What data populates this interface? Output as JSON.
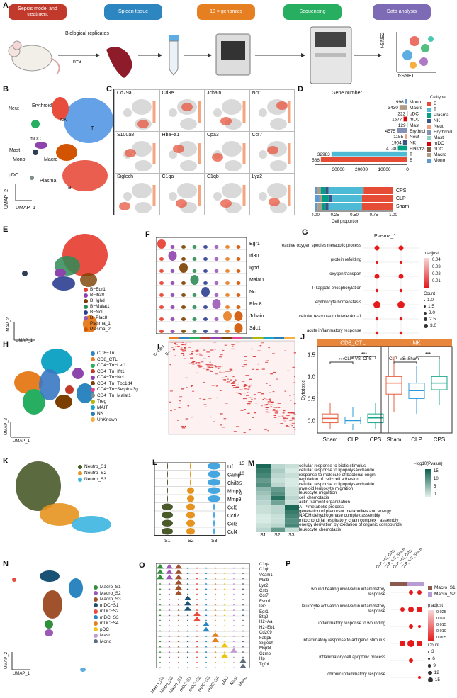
{
  "panel_labels": [
    "A",
    "B",
    "C",
    "D",
    "E",
    "F",
    "G",
    "H",
    "I",
    "J",
    "K",
    "L",
    "M",
    "N",
    "O",
    "P"
  ],
  "panelA": {
    "steps": [
      {
        "label": "Sepsis model and treatment",
        "color": "#c0392b"
      },
      {
        "label": "Spleen tissue",
        "color": "#2e86c1"
      },
      {
        "label": "10 × genomics",
        "color": "#e67e22"
      },
      {
        "label": "Sequencing",
        "color": "#27ae60"
      },
      {
        "label": "Data analysis",
        "color": "#7d6bb5"
      }
    ],
    "bio_rep": "Biological replicates",
    "n": "n=3",
    "tsne_x": "t-SNE1",
    "tsne_y": "t-SNE2"
  },
  "panelB": {
    "clusters": [
      "Neut",
      "Erythroid",
      "NK",
      "T",
      "Mast",
      "mDC",
      "Mono",
      "Macro",
      "pDC",
      "Plasma",
      "B"
    ],
    "xlabel": "UMAP_1",
    "ylabel": "UMAP_2"
  },
  "panelC": {
    "genes": [
      "Cd79a",
      "Cd3e",
      "Jchain",
      "Ncr1",
      "S100a8",
      "Hba−a1",
      "Cpa3",
      "Ccr7",
      "Siglech",
      "C1qa",
      "C1qb",
      "Lyz2"
    ]
  },
  "panelD": {
    "title": "Gene number",
    "chart_data": {
      "type": "bar",
      "categories": [
        "Mono",
        "Macro",
        "pDC",
        "mDC",
        "Mast",
        "Erythroid",
        "Neut",
        "NK",
        "Plasma",
        "T",
        "B"
      ],
      "values": [
        996,
        3430,
        222,
        1677,
        129,
        4575,
        1155,
        1904,
        4138,
        32983,
        37586
      ],
      "xticks": [
        "30000",
        "20000",
        "10000",
        "0"
      ],
      "prop_conditions": [
        "CPS",
        "CLP",
        "Sham"
      ],
      "prop_xticks": [
        "0.00",
        "0.25",
        "0.50",
        "0.75",
        "1.00"
      ],
      "prop_xlabel": "Cell proportion"
    },
    "legend_title": "Celltype",
    "legend": [
      {
        "name": "B",
        "color": "#e64b35"
      },
      {
        "name": "T",
        "color": "#4dbbd5"
      },
      {
        "name": "Plasma",
        "color": "#00a087"
      },
      {
        "name": "NK",
        "color": "#3c5488"
      },
      {
        "name": "Neut",
        "color": "#f39b7f"
      },
      {
        "name": "Erythroid",
        "color": "#8491b4"
      },
      {
        "name": "Mast",
        "color": "#91d1c2"
      },
      {
        "name": "mDC",
        "color": "#dc0000"
      },
      {
        "name": "pDC",
        "color": "#7e6148"
      },
      {
        "name": "Macro",
        "color": "#b09c85"
      },
      {
        "name": "Mono",
        "color": "#5b9bd5"
      }
    ]
  },
  "panelE": {
    "legend": [
      {
        "name": "B−Edr1",
        "color": "#e63c2e"
      },
      {
        "name": "B−Ifi30",
        "color": "#8e44ad"
      },
      {
        "name": "B−Ighd",
        "color": "#7b3f00"
      },
      {
        "name": "B−Malat1",
        "color": "#2e8b57"
      },
      {
        "name": "B−Ncl",
        "color": "#2c3e90"
      },
      {
        "name": "B−Plac8",
        "color": "#9b59b6"
      },
      {
        "name": "Plasma_1",
        "color": "#e67e22"
      },
      {
        "name": "Plasma_2",
        "color": "#d35400"
      }
    ],
    "xlabel": "UMAP_1",
    "ylabel": "UMAP_2"
  },
  "panelF": {
    "genes": [
      "Egr1",
      "Ifi30",
      "Ighd",
      "Malat1",
      "Ncl",
      "Plac8",
      "Jchain",
      "Sdc1"
    ],
    "groups": [
      "B−Edr1",
      "B−Ifi30",
      "B−Ighd",
      "B−Malat1",
      "B−Ncl",
      "B−Plac8",
      "Plasma_1",
      "Plasma_2"
    ]
  },
  "panelG": {
    "title": "Plasma_1",
    "terms": [
      "reactive oxygen species metabolic process",
      "protein refolding",
      "oxygen transport",
      "I−kappaB phosphorylation",
      "erythrocyte homeostasis",
      "cellular response to interleukin−1",
      "acute inflammatory response"
    ],
    "x": [
      "CLP_VS_CPS",
      "CLP_VS_Sham"
    ],
    "padj_title": "p.adjust",
    "padj_ticks": [
      "0.04",
      "0.03",
      "0.02",
      "0.01"
    ],
    "count_title": "Count",
    "count_ticks": [
      "1.0",
      "1.5",
      "2.0",
      "2.5",
      "3.0"
    ]
  },
  "panelH": {
    "legend": [
      {
        "name": "CD8−Tn",
        "color": "#2e86c1"
      },
      {
        "name": "CD8_CTL",
        "color": "#e67e22"
      },
      {
        "name": "CD4−Tn−Lef1",
        "color": "#27ae60"
      },
      {
        "name": "CD4−Tn−Ifit1",
        "color": "#c0392b"
      },
      {
        "name": "CD4−Tn−Ncl",
        "color": "#8e44ad"
      },
      {
        "name": "CD4−Tn−Tbc1d4",
        "color": "#7b3f00"
      },
      {
        "name": "CD4−Tn−Serpina3g",
        "color": "#e84393"
      },
      {
        "name": "CD4−Tn−Malat1",
        "color": "#7f8c8d"
      },
      {
        "name": "Treg",
        "color": "#b5b800"
      },
      {
        "name": "MAIT",
        "color": "#16a5c4"
      },
      {
        "name": "NK",
        "color": "#2980b9"
      },
      {
        "name": "UnKnown",
        "color": "#f5b041"
      }
    ],
    "xlabel": "UMAP_1",
    "ylabel": "UMAP_2"
  },
  "panelJ": {
    "facets": [
      "CD8_CTL",
      "NK"
    ],
    "ylabel": "Cytotoxic",
    "yticks": [
      "1.5",
      "1.0",
      "0.5",
      "0.0"
    ],
    "x": [
      "Sham",
      "CLP",
      "CPS"
    ],
    "sig": "***"
  },
  "panelK": {
    "legend": [
      {
        "name": "Neutro_S1",
        "color": "#4a5a2a"
      },
      {
        "name": "Neutro_S2",
        "color": "#e6941f"
      },
      {
        "name": "Neutro_S3",
        "color": "#3bb5e0"
      }
    ]
  },
  "panelL": {
    "genes": [
      "Ltf",
      "Camp",
      "Chil3",
      "Mmp8",
      "Mmp9",
      "Ccl6",
      "Ccrl2",
      "Ccl3",
      "Ccl4"
    ],
    "groups": [
      "S1",
      "S2",
      "S3"
    ],
    "scale": [
      "15",
      "10",
      "5",
      "0"
    ]
  },
  "panelM": {
    "terms": [
      "cellular response to biotic stimulus",
      "cellular response to lipopolysaccharide",
      "response to molecule of bacterial origin",
      "regulation of cell−cell adhesion",
      "cellular response to lipopolysaccharide",
      "myeloid leukocyte migration",
      "leukocyte migration",
      "cell chemotaxis",
      "actin filament organization",
      "ATP metabolic process",
      "generation of precursor metabolites and energy",
      "NADH dehydrogenase complex assembly",
      "mitochondrial respiratory chain complex I assembly",
      "energy derivation by oxidation of organic compounds",
      "leukocyte chemotaxis"
    ],
    "groups": [
      "S1",
      "S2",
      "S3"
    ],
    "scale_title": "−log10(Pvalue)",
    "scale_ticks": [
      "15",
      "10",
      "5",
      "0"
    ]
  },
  "panelN": {
    "legend": [
      {
        "name": "Macro_S1",
        "color": "#2f8f3a"
      },
      {
        "name": "Macro_S2",
        "color": "#9b59b6"
      },
      {
        "name": "Macro_S3",
        "color": "#a0522d"
      },
      {
        "name": "mDC−S1",
        "color": "#1a5276"
      },
      {
        "name": "mDC−S2",
        "color": "#e74c3c"
      },
      {
        "name": "mDC−S3",
        "color": "#2e86c1"
      },
      {
        "name": "mDC−S4",
        "color": "#e67e22"
      },
      {
        "name": "pDC",
        "color": "#f1c40f"
      },
      {
        "name": "Mast",
        "color": "#c39bd3"
      },
      {
        "name": "Mono",
        "color": "#5d6d7e"
      }
    ],
    "xlabel": "UMAP_1",
    "ylabel": "UMAP_2"
  },
  "panelO": {
    "genes": [
      "C1qa",
      "C1qb",
      "Vcam1",
      "Mafb",
      "Lyz2",
      "Cstb",
      "Ccr7",
      "Fscn1",
      "Ier3",
      "Egr1",
      "Btg2",
      "H2−Aa",
      "H2−Eb1",
      "Cd209",
      "Fabp5",
      "Siglech",
      "Mcpt8",
      "Gzmb",
      "Hp",
      "Tgfbi"
    ],
    "groups": [
      "Macro_S1",
      "Macro_S2",
      "Macro_S3",
      "mDC−S1",
      "mDC−S2",
      "mDC−S3",
      "mDC−S4",
      "pDC",
      "Mast",
      "Mono"
    ]
  },
  "panelP": {
    "x": [
      "CLP_VS_CPS",
      "CLP_VS_Sham",
      "CLP_VS_CPS",
      "CLP_VS_Sham"
    ],
    "legend": [
      {
        "name": "Macro_S1",
        "color": "#8b5a4a"
      },
      {
        "name": "Macro_S2",
        "color": "#b79bd3"
      }
    ],
    "terms": [
      "wound healing involved in inflammatory response",
      "leukocyte activation involved in inflammatory response",
      "inflammatory response to wounding",
      "inflammatory response to antigenic stimulus",
      "inflammatory cell apoptotic process",
      "chronic inflammatory response"
    ],
    "padj_title": "p.adjust",
    "padj_ticks": [
      "0.025",
      "0.020",
      "0.015",
      "0.010",
      "0.005"
    ],
    "count_title": "Count",
    "count_ticks": [
      "3",
      "6",
      "9",
      "12",
      "15"
    ]
  }
}
